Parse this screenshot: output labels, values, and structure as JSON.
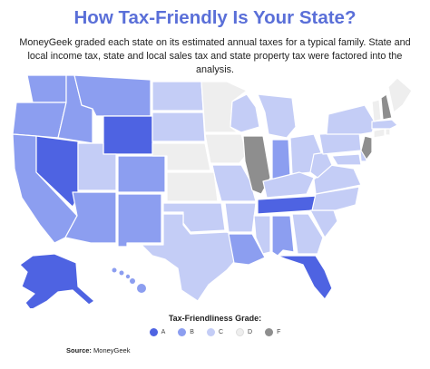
{
  "title": "How Tax-Friendly Is Your State?",
  "subtitle": "MoneyGeek graded each state on its estimated annual taxes for a typical family. State and local income tax, state and local sales tax and state property tax were factored into the analysis.",
  "legend": {
    "title": "Tax-Friendliness Grade:",
    "items": [
      {
        "label": "A",
        "color": "#4e63e2"
      },
      {
        "label": "B",
        "color": "#8c9ef0"
      },
      {
        "label": "C",
        "color": "#c4cdf6"
      },
      {
        "label": "D",
        "color": "#eeeeee"
      },
      {
        "label": "F",
        "color": "#8e8e8e"
      }
    ]
  },
  "source": {
    "label": "Source:",
    "value": "MoneyGeek"
  },
  "colors": {
    "title": "#5a6fd8",
    "border": "#ffffff"
  }
}
